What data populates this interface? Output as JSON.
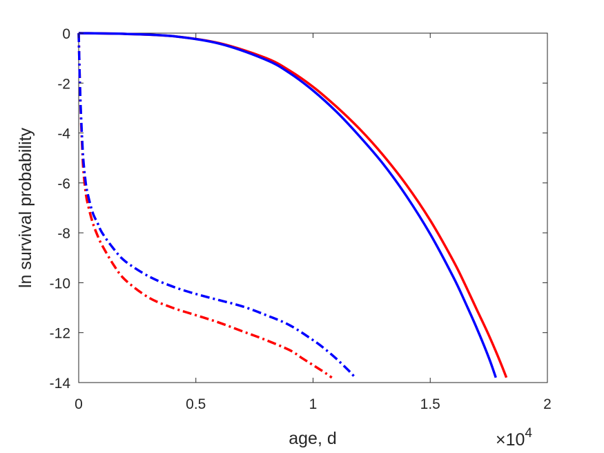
{
  "chart_data": {
    "type": "line",
    "xlabel": "age, d",
    "ylabel": "ln survival probability",
    "x_scale_text": {
      "base": "×10",
      "exponent": "4"
    },
    "xlim": [
      0,
      20000
    ],
    "ylim": [
      -14,
      0
    ],
    "xticks": [
      0,
      5000,
      10000,
      15000,
      20000
    ],
    "xtick_labels": [
      "0",
      "0.5",
      "1",
      "1.5",
      "2"
    ],
    "yticks": [
      0,
      -2,
      -4,
      -6,
      -8,
      -10,
      -12,
      -14
    ],
    "ytick_labels": [
      "0",
      "-2",
      "-4",
      "-6",
      "-8",
      "-10",
      "-12",
      "-14"
    ],
    "grid": false,
    "legend": "none",
    "series": [
      {
        "color": "#ff0000",
        "style": "solid",
        "x": [
          0,
          2000,
          4000,
          6000,
          8000,
          9000,
          10000,
          11000,
          12000,
          13000,
          14000,
          15000,
          16000,
          16500,
          17000,
          17500,
          18000,
          18250
        ],
        "y": [
          0,
          -0.03,
          -0.12,
          -0.4,
          -1.0,
          -1.5,
          -2.15,
          -2.95,
          -3.85,
          -4.9,
          -6.1,
          -7.5,
          -9.15,
          -10.1,
          -11.1,
          -12.1,
          -13.2,
          -13.8
        ]
      },
      {
        "color": "#0000ff",
        "style": "solid",
        "x": [
          0,
          2000,
          4000,
          6000,
          8000,
          9000,
          10000,
          11000,
          12000,
          13000,
          14000,
          15000,
          16000,
          16500,
          17000,
          17500,
          17800
        ],
        "y": [
          0,
          -0.03,
          -0.12,
          -0.42,
          -1.07,
          -1.6,
          -2.3,
          -3.15,
          -4.15,
          -5.25,
          -6.55,
          -8.05,
          -9.8,
          -10.8,
          -11.85,
          -13.0,
          -13.8
        ]
      },
      {
        "color": "#ff0000",
        "style": "dashdot",
        "x": [
          0,
          50,
          100,
          150,
          200,
          300,
          400,
          600,
          800,
          1000,
          1500,
          2000,
          3000,
          4000,
          5000,
          6000,
          7000,
          8000,
          9000,
          9500,
          10000,
          10500,
          10800
        ],
        "y": [
          0,
          -2.0,
          -3.5,
          -4.6,
          -5.5,
          -6.4,
          -6.9,
          -7.6,
          -8.1,
          -8.5,
          -9.3,
          -9.9,
          -10.6,
          -11.0,
          -11.3,
          -11.6,
          -11.95,
          -12.3,
          -12.7,
          -13.0,
          -13.3,
          -13.6,
          -13.8
        ]
      },
      {
        "color": "#0000ff",
        "style": "dashdot",
        "x": [
          0,
          50,
          100,
          150,
          200,
          300,
          400,
          600,
          800,
          1000,
          1500,
          2000,
          3000,
          4000,
          5000,
          6000,
          7000,
          8000,
          9000,
          10000,
          10500,
          11000,
          11500,
          11800
        ],
        "y": [
          0,
          -2.0,
          -3.3,
          -4.3,
          -5.1,
          -6.0,
          -6.5,
          -7.2,
          -7.6,
          -8.0,
          -8.65,
          -9.15,
          -9.75,
          -10.15,
          -10.45,
          -10.7,
          -10.95,
          -11.3,
          -11.7,
          -12.3,
          -12.65,
          -13.05,
          -13.5,
          -13.8
        ]
      }
    ]
  }
}
